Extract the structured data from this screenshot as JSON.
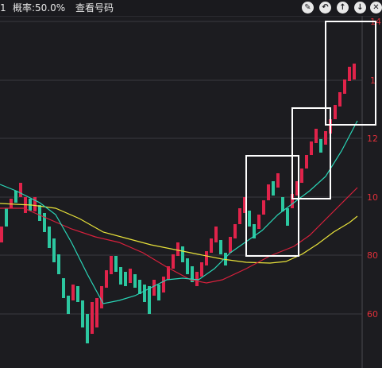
{
  "toolbar": {
    "left_fragment": "1",
    "probability_label": "概率:50.0%",
    "view_code_label": "查看号码",
    "icons": [
      "pencil-icon",
      "undo-icon",
      "arrow-up-icon",
      "arrow-down-icon",
      "close-icon"
    ]
  },
  "colors": {
    "background": "#1c1c20",
    "up_candle": "#e0234a",
    "down_candle": "#2cc7a0",
    "ma_short": "#2ad7b8",
    "ma_mid": "#d8203c",
    "ma_long": "#e8e23a",
    "grid": "#3a3a40",
    "axis_label": "#e0303a",
    "highlight_box": "#ffffff"
  },
  "axis": {
    "labels": [
      "14",
      "12",
      "10",
      "80",
      "60",
      "1"
    ]
  }
}
